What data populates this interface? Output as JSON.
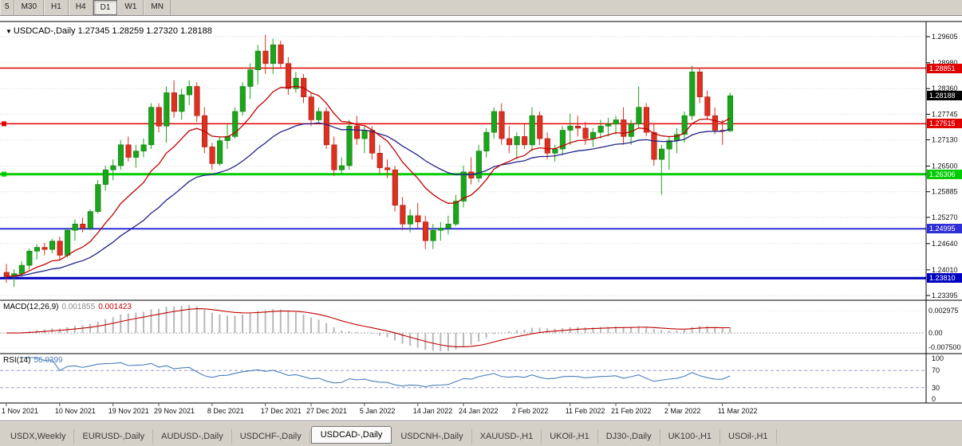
{
  "toolbar": {
    "timeframes": [
      "5",
      "M30",
      "H1",
      "H4",
      "D1",
      "W1",
      "MN"
    ],
    "active": "D1"
  },
  "chart_title": {
    "dropdown_icon": "▼",
    "symbol": "USDCAD-,Daily",
    "ohlc": "1.27345 1.28259 1.27320 1.28188"
  },
  "chart_data": {
    "type": "candlestick",
    "symbol": "USDCAD-",
    "timeframe": "Daily",
    "current_bar": {
      "open": "1.27345",
      "high": "1.28259",
      "low": "1.27320",
      "close": "1.28188"
    },
    "y_axis": {
      "ticks": [
        "1.29605",
        "1.28980",
        "1.28360",
        "1.27745",
        "1.27130",
        "1.26500",
        "1.25885",
        "1.25270",
        "1.24640",
        "1.24010",
        "1.23395"
      ],
      "range_top": 1.2995,
      "range_bottom": 1.233
    },
    "x_axis": {
      "labels": [
        "1 Nov 2021",
        "10 Nov 2021",
        "19 Nov 2021",
        "29 Nov 2021",
        "8 Dec 2021",
        "17 Dec 2021",
        "27 Dec 2021",
        "5 Jan 2022",
        "14 Jan 2022",
        "24 Jan 2022",
        "2 Feb 2022",
        "11 Feb 2022",
        "21 Feb 2022",
        "2 Mar 2022",
        "11 Mar 2022"
      ],
      "indices": [
        0,
        7,
        14,
        20,
        27,
        34,
        40,
        47,
        54,
        60,
        67,
        74,
        80,
        87,
        94
      ]
    },
    "candle_colors": {
      "bull": "#1CA51C",
      "bear": "#DC3020",
      "bull_edge": "#0E7A0E",
      "bear_edge": "#A51A10"
    },
    "ma": {
      "fast_period": 12,
      "fast_color": "#C00000",
      "slow_period": 30,
      "slow_color": "#22228E"
    },
    "levels": [
      {
        "price": 1.28851,
        "label": "1.28851",
        "color": "#E00000",
        "thickness": 1.5,
        "handles": false
      },
      {
        "price": 1.27515,
        "label": "1.27515",
        "color": "#E00000",
        "thickness": 1.5,
        "handles": true
      },
      {
        "price": 1.26306,
        "label": "1.26306",
        "color": "#00CC00",
        "thickness": 3,
        "handles": true
      },
      {
        "price": 1.24995,
        "label": "1.24995",
        "color": "#2E2ED6",
        "thickness": 2,
        "handles": false
      },
      {
        "price": 1.2381,
        "label": "1.23810",
        "color": "#0000C0",
        "thickness": 3,
        "handles": false
      }
    ],
    "bid": {
      "label": "1.28188",
      "price": 1.28188,
      "bg": "#000000"
    },
    "macd": {
      "name": "MACD(12,26,9)",
      "fast": 12,
      "slow": 26,
      "signal": 9,
      "value_main": "0.001855",
      "value_signal": "0.001423",
      "axis_labels": [
        "0.002975",
        "0.00",
        "-0.007500"
      ],
      "hist_color": "#B8B8B8",
      "signal_color": "#C00000"
    },
    "rsi": {
      "name": "RSI(14)",
      "period": 14,
      "value": "56.0299",
      "axis_labels": [
        "100",
        "70",
        "30",
        "0"
      ],
      "upper": 70,
      "lower": 30,
      "line_color": "#4A7EBB"
    },
    "candles": [
      [
        1.2395,
        1.2415,
        1.237,
        1.2385
      ],
      [
        1.2385,
        1.2402,
        1.236,
        1.2392
      ],
      [
        1.2392,
        1.2422,
        1.2386,
        1.2412
      ],
      [
        1.2412,
        1.2452,
        1.2402,
        1.2446
      ],
      [
        1.2446,
        1.2462,
        1.2426,
        1.2455
      ],
      [
        1.2455,
        1.2466,
        1.2436,
        1.245
      ],
      [
        1.245,
        1.2476,
        1.2441,
        1.247
      ],
      [
        1.247,
        1.2481,
        1.2426,
        1.2436
      ],
      [
        1.2436,
        1.2502,
        1.2431,
        1.2496
      ],
      [
        1.2496,
        1.2522,
        1.2471,
        1.2511
      ],
      [
        1.2511,
        1.2526,
        1.2491,
        1.2501
      ],
      [
        1.2501,
        1.2546,
        1.2496,
        1.2541
      ],
      [
        1.2541,
        1.2616,
        1.2536,
        1.2606
      ],
      [
        1.2606,
        1.2651,
        1.2591,
        1.2641
      ],
      [
        1.2641,
        1.2666,
        1.2616,
        1.2651
      ],
      [
        1.2651,
        1.2712,
        1.2641,
        1.2701
      ],
      [
        1.2701,
        1.2721,
        1.2661,
        1.2671
      ],
      [
        1.2671,
        1.2701,
        1.2646,
        1.2686
      ],
      [
        1.2686,
        1.2716,
        1.2671,
        1.2701
      ],
      [
        1.2701,
        1.2801,
        1.2691,
        1.2791
      ],
      [
        1.2791,
        1.2801,
        1.2731,
        1.2746
      ],
      [
        1.2746,
        1.2841,
        1.2706,
        1.2826
      ],
      [
        1.2826,
        1.2856,
        1.2766,
        1.2781
      ],
      [
        1.2781,
        1.2836,
        1.2761,
        1.2821
      ],
      [
        1.2821,
        1.2856,
        1.2796,
        1.2841
      ],
      [
        1.2841,
        1.2851,
        1.2756,
        1.2771
      ],
      [
        1.2771,
        1.2791,
        1.2681,
        1.2696
      ],
      [
        1.2696,
        1.2706,
        1.2641,
        1.2656
      ],
      [
        1.2656,
        1.2721,
        1.2651,
        1.2711
      ],
      [
        1.2711,
        1.2751,
        1.2691,
        1.2721
      ],
      [
        1.2721,
        1.2791,
        1.2716,
        1.2781
      ],
      [
        1.2781,
        1.2851,
        1.2771,
        1.2841
      ],
      [
        1.2841,
        1.2896,
        1.2811,
        1.2881
      ],
      [
        1.2881,
        1.2941,
        1.2846,
        1.2926
      ],
      [
        1.2926,
        1.2965,
        1.2871,
        1.2896
      ],
      [
        1.2896,
        1.2956,
        1.2871,
        1.2941
      ],
      [
        1.2941,
        1.2951,
        1.2886,
        1.2896
      ],
      [
        1.2896,
        1.2911,
        1.2821,
        1.2836
      ],
      [
        1.2836,
        1.2876,
        1.2826,
        1.2861
      ],
      [
        1.2861,
        1.2871,
        1.2801,
        1.2816
      ],
      [
        1.2816,
        1.2826,
        1.2746,
        1.2761
      ],
      [
        1.2761,
        1.2791,
        1.2751,
        1.2781
      ],
      [
        1.2781,
        1.2791,
        1.2691,
        1.2701
      ],
      [
        1.2701,
        1.2721,
        1.2626,
        1.2641
      ],
      [
        1.2641,
        1.2671,
        1.2631,
        1.2651
      ],
      [
        1.2651,
        1.2761,
        1.2641,
        1.2746
      ],
      [
        1.2746,
        1.2771,
        1.2701,
        1.2716
      ],
      [
        1.2716,
        1.2746,
        1.2681,
        1.2736
      ],
      [
        1.2736,
        1.2746,
        1.2666,
        1.2681
      ],
      [
        1.2681,
        1.2701,
        1.2631,
        1.2646
      ],
      [
        1.2646,
        1.2666,
        1.2621,
        1.2641
      ],
      [
        1.2641,
        1.2651,
        1.2541,
        1.2556
      ],
      [
        1.2556,
        1.2576,
        1.2496,
        1.2511
      ],
      [
        1.2511,
        1.2546,
        1.2491,
        1.2531
      ],
      [
        1.2531,
        1.2561,
        1.2501,
        1.2516
      ],
      [
        1.2516,
        1.2531,
        1.2451,
        1.2471
      ],
      [
        1.2471,
        1.2511,
        1.2451,
        1.2496
      ],
      [
        1.2496,
        1.2516,
        1.2471,
        1.2501
      ],
      [
        1.2501,
        1.2531,
        1.2486,
        1.2511
      ],
      [
        1.2511,
        1.2581,
        1.2506,
        1.2566
      ],
      [
        1.2566,
        1.2651,
        1.2551,
        1.2636
      ],
      [
        1.2636,
        1.2671,
        1.2606,
        1.2621
      ],
      [
        1.2621,
        1.2701,
        1.2611,
        1.2686
      ],
      [
        1.2686,
        1.2741,
        1.2671,
        1.2731
      ],
      [
        1.2731,
        1.2791,
        1.2716,
        1.2781
      ],
      [
        1.2781,
        1.2801,
        1.2701,
        1.2716
      ],
      [
        1.2716,
        1.2746,
        1.2681,
        1.2701
      ],
      [
        1.2701,
        1.2731,
        1.2666,
        1.2721
      ],
      [
        1.2721,
        1.2751,
        1.2691,
        1.2701
      ],
      [
        1.2701,
        1.2791,
        1.2686,
        1.2771
      ],
      [
        1.2771,
        1.2781,
        1.2701,
        1.2716
      ],
      [
        1.2716,
        1.2731,
        1.2666,
        1.2681
      ],
      [
        1.2681,
        1.2701,
        1.2661,
        1.2691
      ],
      [
        1.2691,
        1.2746,
        1.2676,
        1.2736
      ],
      [
        1.2736,
        1.2776,
        1.2701,
        1.2746
      ],
      [
        1.2746,
        1.2771,
        1.2721,
        1.2741
      ],
      [
        1.2741,
        1.2756,
        1.2701,
        1.2716
      ],
      [
        1.2716,
        1.2741,
        1.2696,
        1.2731
      ],
      [
        1.2731,
        1.2761,
        1.2716,
        1.2746
      ],
      [
        1.2746,
        1.2766,
        1.2721,
        1.2751
      ],
      [
        1.2751,
        1.2771,
        1.2726,
        1.2761
      ],
      [
        1.2761,
        1.2791,
        1.2701,
        1.2721
      ],
      [
        1.2721,
        1.2761,
        1.2701,
        1.2751
      ],
      [
        1.2751,
        1.2841,
        1.2741,
        1.2791
      ],
      [
        1.2791,
        1.2801,
        1.2721,
        1.2731
      ],
      [
        1.2731,
        1.2751,
        1.2651,
        1.2666
      ],
      [
        1.2666,
        1.2701,
        1.2581,
        1.2691
      ],
      [
        1.2691,
        1.2721,
        1.2641,
        1.2711
      ],
      [
        1.2711,
        1.2741,
        1.2681,
        1.2726
      ],
      [
        1.2726,
        1.2781,
        1.2706,
        1.2771
      ],
      [
        1.2771,
        1.2891,
        1.2761,
        1.2876
      ],
      [
        1.2876,
        1.2886,
        1.2801,
        1.2816
      ],
      [
        1.2816,
        1.2831,
        1.2761,
        1.2771
      ],
      [
        1.2771,
        1.2791,
        1.2726,
        1.2736
      ],
      [
        1.2736,
        1.2761,
        1.2701,
        1.2734
      ],
      [
        1.27345,
        1.28259,
        1.2732,
        1.28188
      ]
    ]
  },
  "tabs": {
    "items": [
      "USDX,Weekly",
      "EURUSD-,Daily",
      "AUDUSD-,Daily",
      "USDCHF-,Daily",
      "USDCAD-,Daily",
      "USDCNH-,Daily",
      "XAUUSD-,H1",
      "UKOil-,H1",
      "DJ30-,Daily",
      "UK100-,H1",
      "USOil-,H1"
    ],
    "active": "USDCAD-,Daily"
  }
}
